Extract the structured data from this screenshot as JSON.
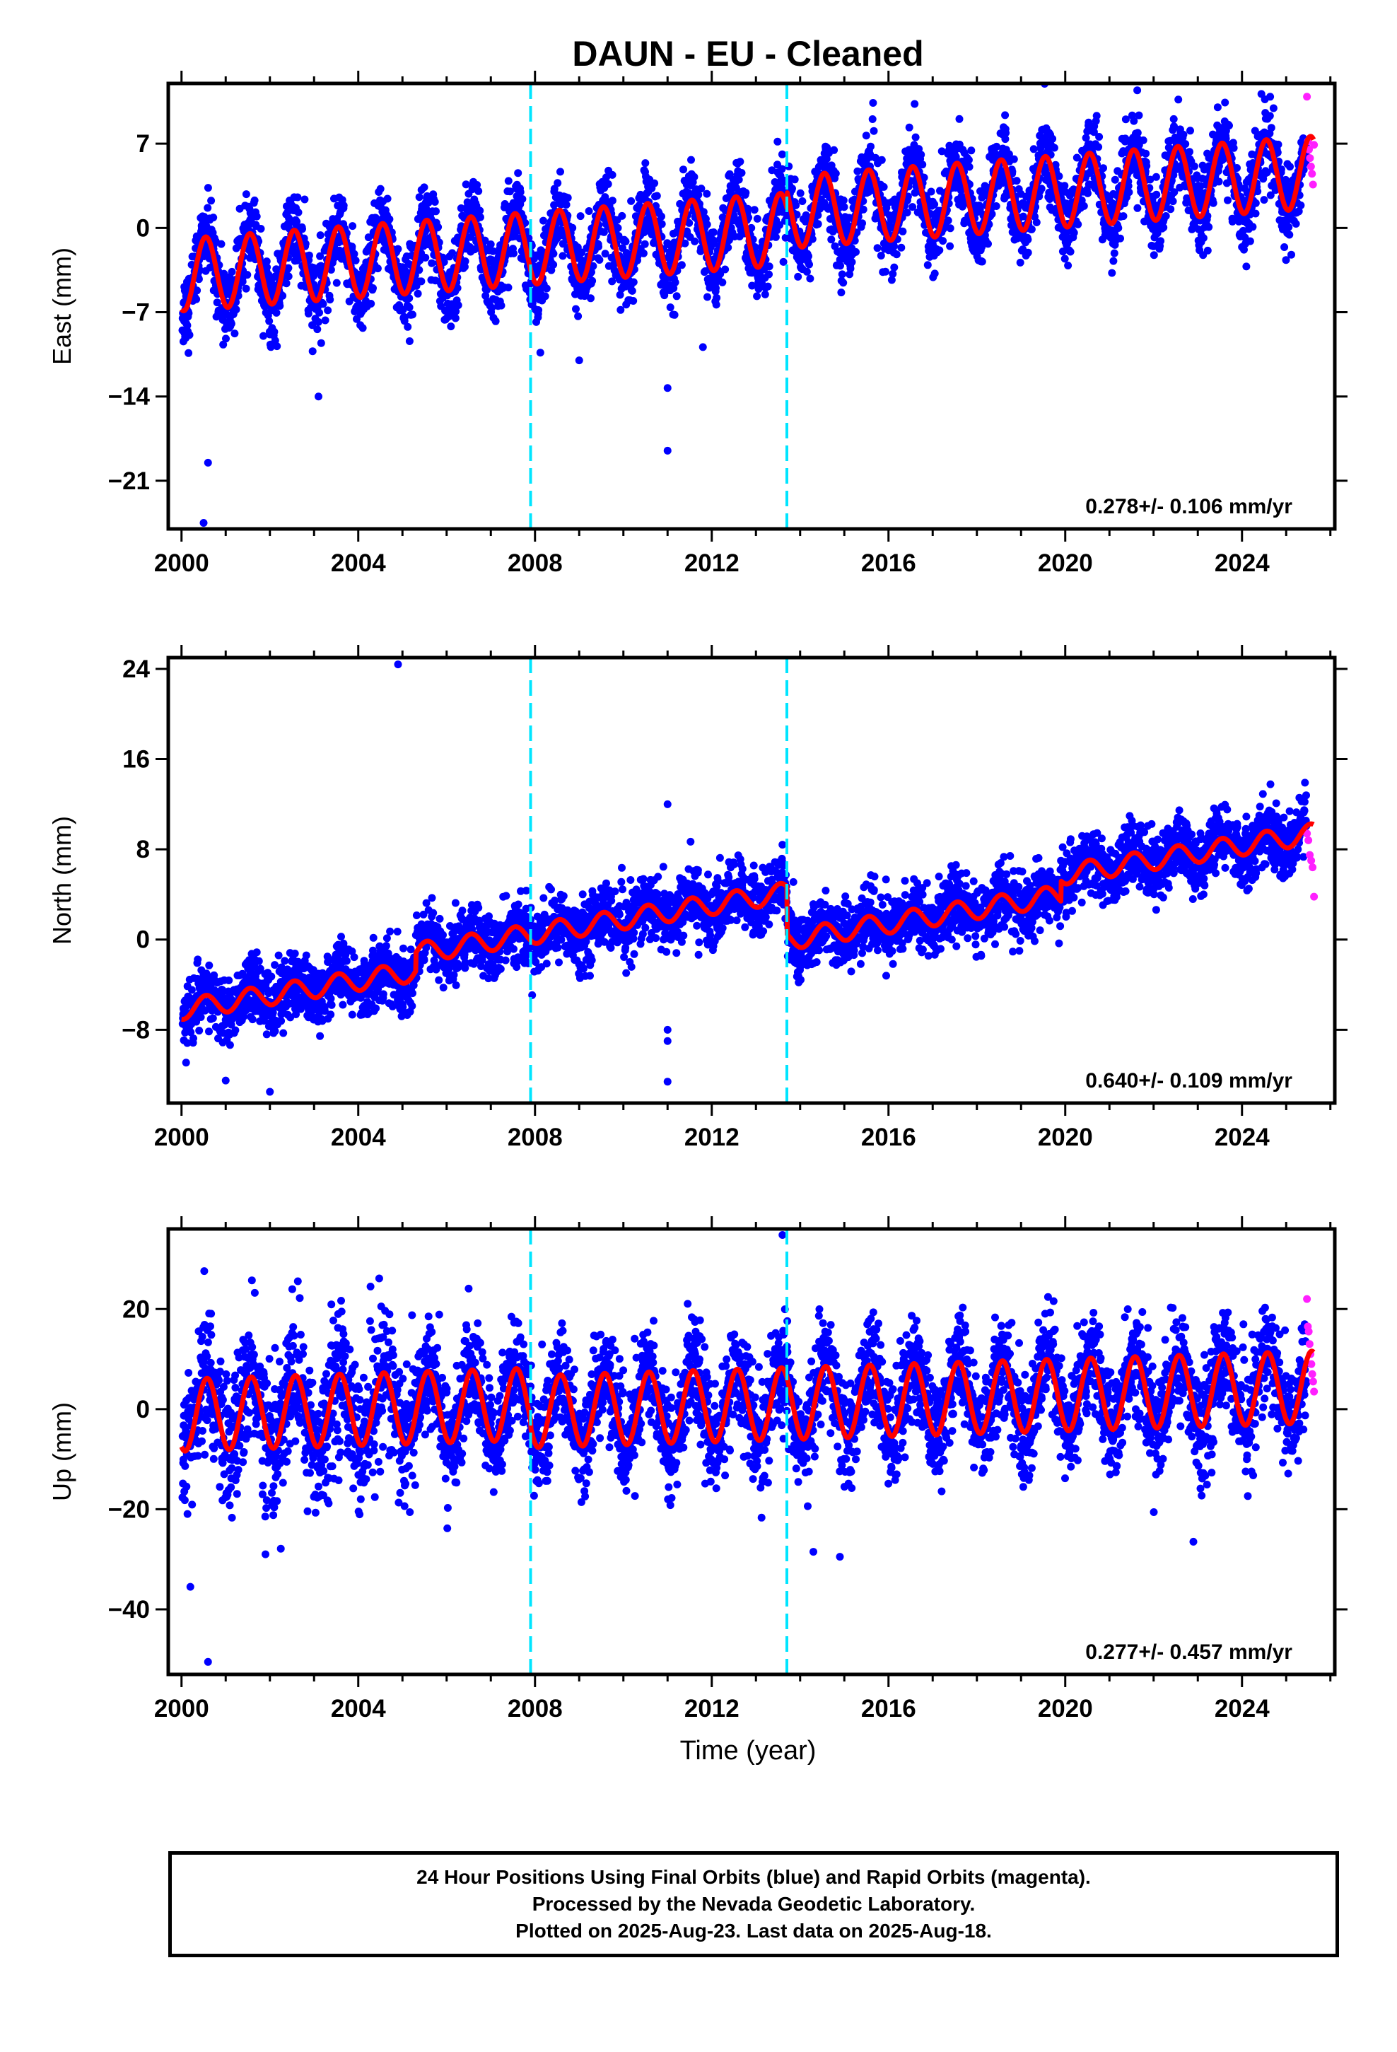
{
  "title": "DAUN  - EU - Cleaned",
  "xlabel": "Time (year)",
  "colors": {
    "final": "#0000ff",
    "rapid": "#ff1fff",
    "model": "#ff0000",
    "steps": "#00e5ff",
    "frame": "#000000"
  },
  "footer": {
    "line1": "24 Hour Positions Using Final Orbits (blue) and Rapid Orbits (magenta).",
    "line2": "Processed by the Nevada Geodetic Laboratory.",
    "line3": "Plotted on 2025-Aug-23. Last data on 2025-Aug-18."
  },
  "chart_data": [
    {
      "type": "scatter",
      "component": "east",
      "ylabel": "East (mm)",
      "rate_label": "0.278+/- 0.106 mm/yr",
      "xlim": [
        1999.7,
        2026.1
      ],
      "ylim": [
        -25,
        12
      ],
      "xticks": [
        2000,
        2004,
        2008,
        2012,
        2016,
        2020,
        2024
      ],
      "yticks": [
        7,
        0,
        -7,
        -14,
        -21
      ],
      "step_epochs": [
        2007.9,
        2013.7
      ],
      "model": {
        "start": -3.9,
        "trend": 0.278,
        "seasonal_amplitude": 3.0,
        "offsets": [
          {
            "at": 2013.7,
            "value": 1.4
          }
        ],
        "peak_phase_year_fraction": 0.55
      },
      "scatter_sd": 1.6,
      "outliers": [
        [
          2000.6,
          -19.5
        ],
        [
          2000.5,
          -24.5
        ],
        [
          2003.1,
          -14.0
        ],
        [
          2011.0,
          -13.3
        ],
        [
          2011.0,
          -18.5
        ],
        [
          2009.0,
          -11.0
        ],
        [
          2011.8,
          -9.9
        ]
      ],
      "rapid_range": [
        2025.47,
        2025.63
      ],
      "rapid_points": [
        10.9,
        7.2,
        6.5,
        5.8,
        5.1,
        4.5,
        3.6,
        6.9
      ]
    },
    {
      "type": "scatter",
      "component": "north",
      "ylabel": "North (mm)",
      "rate_label": "0.640+/- 0.109 mm/yr",
      "xlim": [
        1999.7,
        2026.1
      ],
      "ylim": [
        -14.5,
        25
      ],
      "xticks": [
        2000,
        2004,
        2008,
        2012,
        2016,
        2020,
        2024
      ],
      "yticks": [
        24,
        16,
        8,
        0,
        -8
      ],
      "step_epochs": [
        2007.9,
        2013.7
      ],
      "model": {
        "start": -6.2,
        "trend": 0.64,
        "seasonal_amplitude": 0.9,
        "offsets": [
          {
            "at": 2005.3,
            "value": 1.6
          },
          {
            "at": 2013.7,
            "value": -4.2
          },
          {
            "at": 2019.9,
            "value": 1.8
          }
        ],
        "peak_phase_year_fraction": 0.55
      },
      "scatter_sd": 1.4,
      "outliers": [
        [
          2004.9,
          24.4
        ],
        [
          2011.0,
          12.0
        ],
        [
          2011.0,
          -8.0
        ],
        [
          2011.0,
          -12.6
        ],
        [
          2011.0,
          -9.0
        ],
        [
          2002.0,
          -13.5
        ],
        [
          2001.0,
          -12.5
        ]
      ],
      "rapid_range": [
        2025.47,
        2025.63
      ],
      "rapid_points": [
        9.4,
        8.8,
        7.5,
        7.0,
        6.4,
        3.8
      ]
    },
    {
      "type": "scatter",
      "component": "up",
      "ylabel": "Up (mm)",
      "rate_label": "0.277+/- 0.457 mm/yr",
      "xlim": [
        1999.7,
        2026.1
      ],
      "ylim": [
        -53,
        36
      ],
      "xticks": [
        2000,
        2004,
        2008,
        2012,
        2016,
        2020,
        2024
      ],
      "yticks": [
        20,
        0,
        -20,
        -40
      ],
      "step_epochs": [
        2007.9,
        2013.7
      ],
      "model": {
        "start": -1.2,
        "trend": 0.277,
        "seasonal_amplitude": 7.2,
        "offsets": [
          {
            "at": 2007.9,
            "value": -1.5
          }
        ],
        "peak_phase_year_fraction": 0.58
      },
      "scatter_sd": 5.2,
      "outliers": [
        [
          2000.6,
          -50.5
        ],
        [
          2001.9,
          -29.0
        ],
        [
          2013.6,
          34.8
        ],
        [
          2014.3,
          -28.5
        ],
        [
          2014.9,
          -29.5
        ],
        [
          2022.9,
          -26.5
        ],
        [
          2000.2,
          -35.5
        ]
      ],
      "rapid_range": [
        2025.47,
        2025.63
      ],
      "rapid_points": [
        22.0,
        16.5,
        15.5,
        13.0,
        11.0,
        9.0,
        7.0,
        5.5,
        3.5
      ]
    }
  ]
}
